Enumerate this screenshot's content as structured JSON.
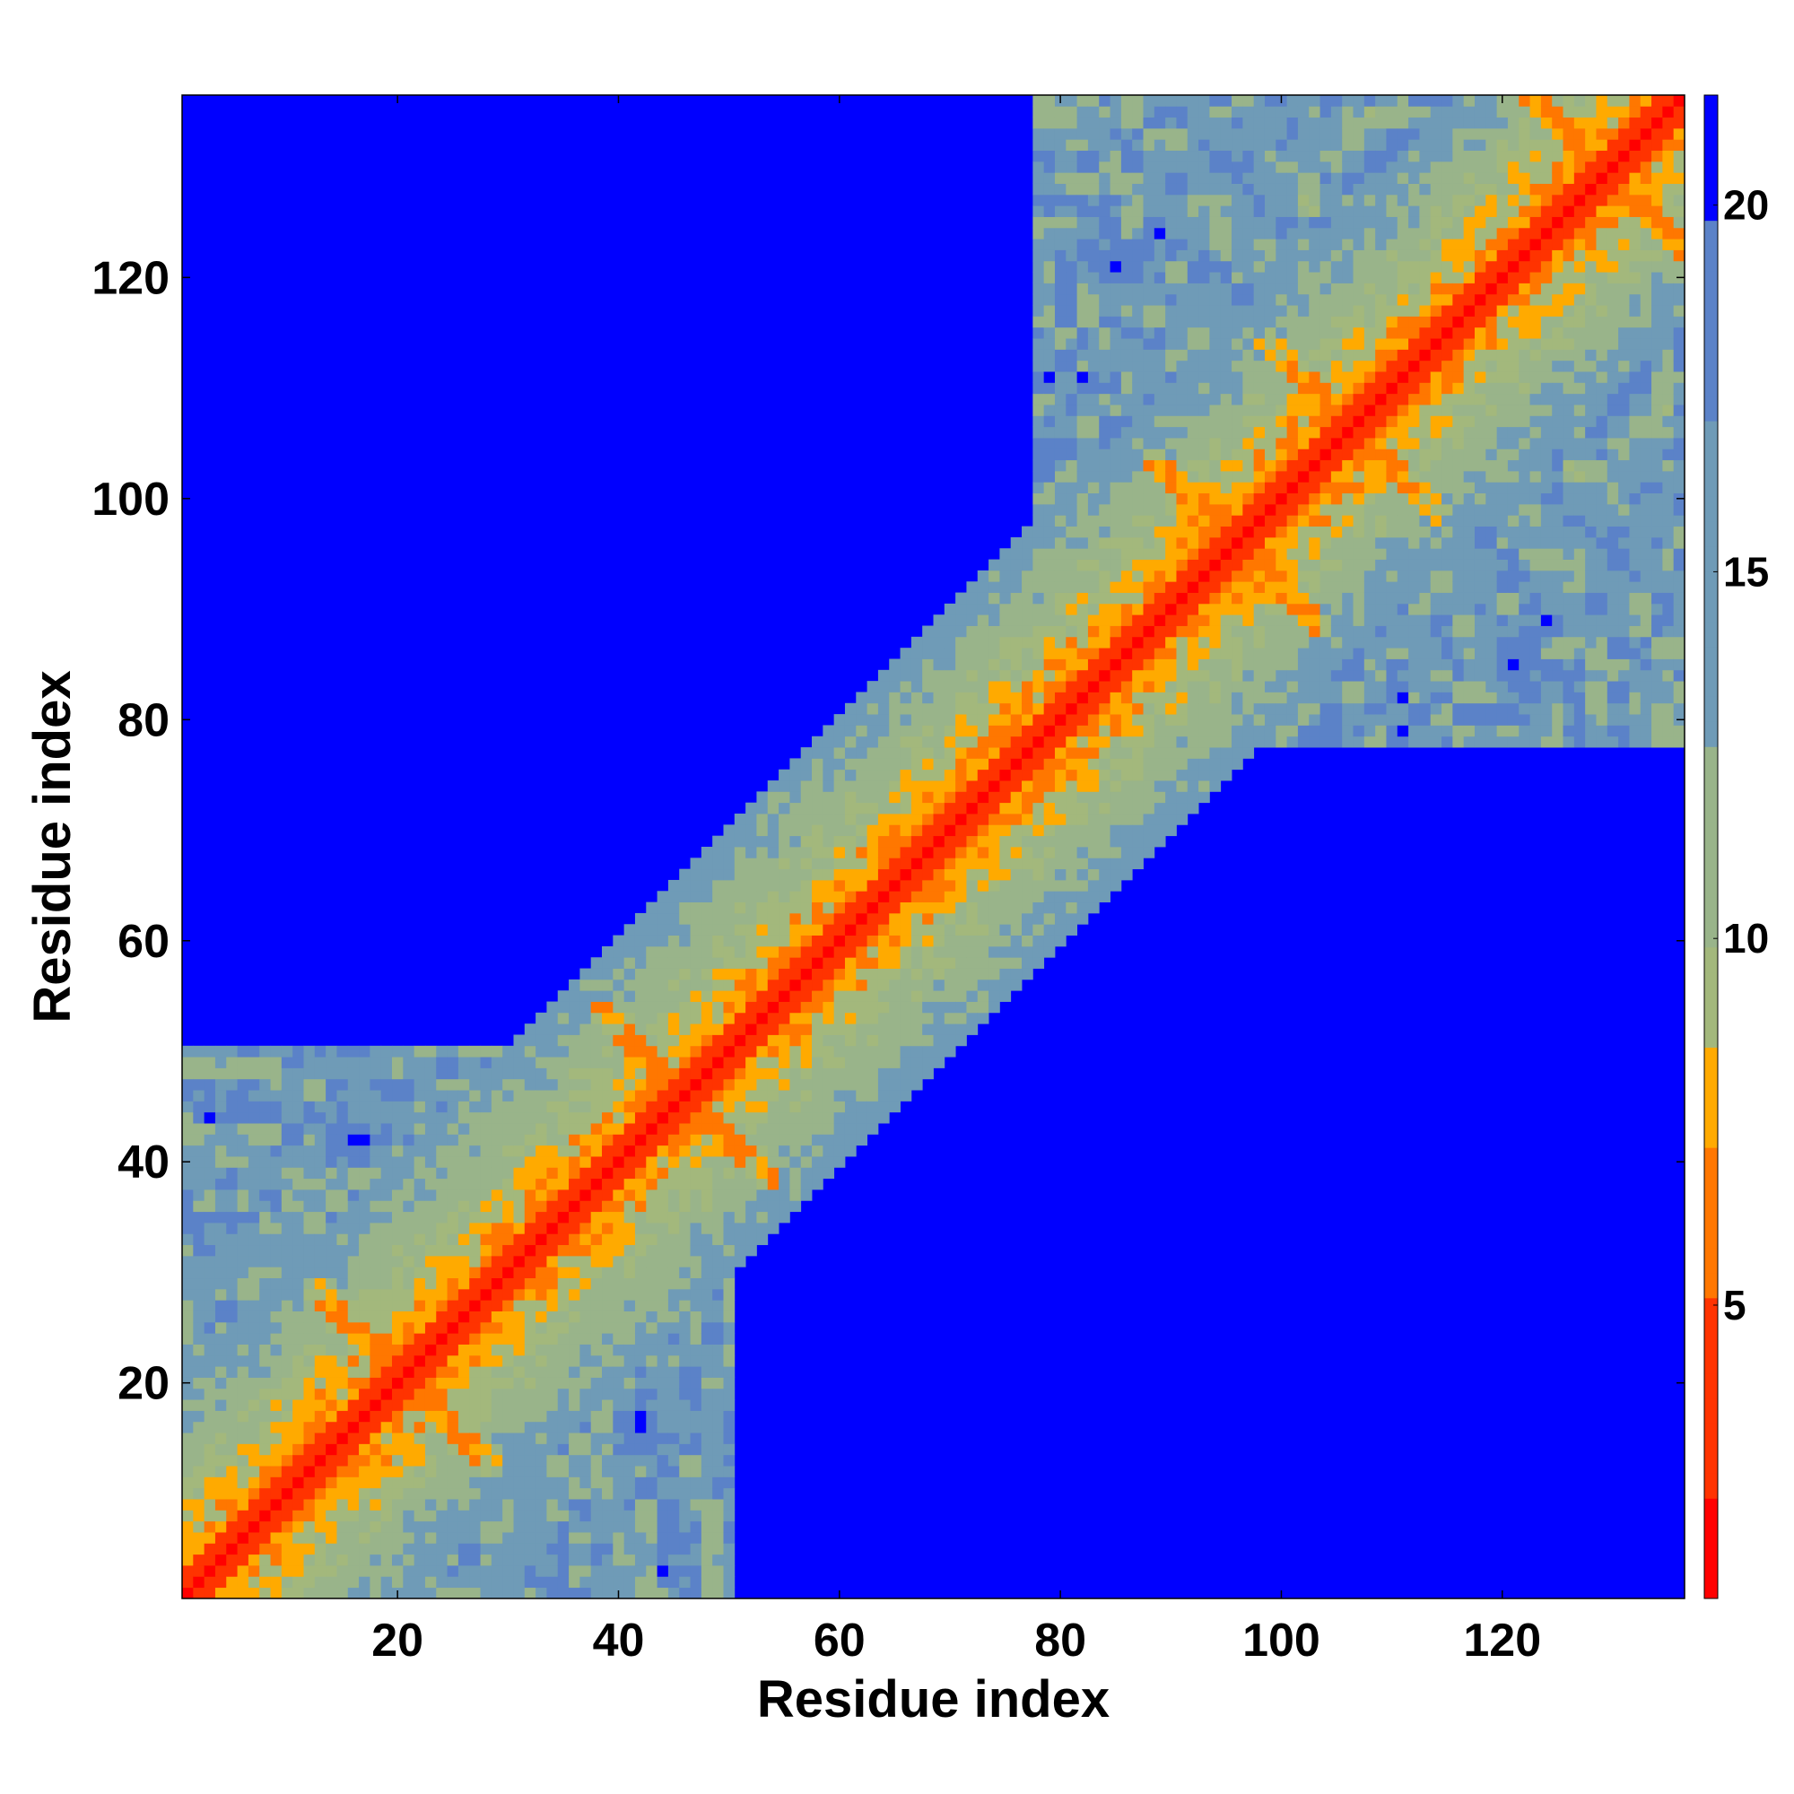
{
  "chart_data": {
    "type": "heatmap",
    "title": "",
    "xlabel": "Residue index",
    "ylabel": "Residue index",
    "xlim": [
      1,
      136
    ],
    "ylim": [
      1,
      136
    ],
    "x_ticks": [
      20,
      40,
      60,
      80,
      100,
      120
    ],
    "y_ticks": [
      20,
      40,
      60,
      80,
      100,
      120
    ],
    "colorbar": {
      "range": [
        1,
        21.5
      ],
      "ticks": [
        5,
        10,
        15,
        20
      ],
      "scale": [
        {
          "value": 1,
          "color": "#ff0000"
        },
        {
          "value": 4,
          "color": "#ff3300"
        },
        {
          "value": 6,
          "color": "#ff7700"
        },
        {
          "value": 8.2,
          "color": "#ffaa00"
        },
        {
          "value": 8.6,
          "color": "#a3b87c"
        },
        {
          "value": 11,
          "color": "#99b48a"
        },
        {
          "value": 14.5,
          "color": "#6f9bb7"
        },
        {
          "value": 19.5,
          "color": "#5b82c8"
        },
        {
          "value": 20.3,
          "color": "#0000ff"
        },
        {
          "value": 21.5,
          "color": "#0000ff"
        }
      ]
    },
    "blocks": [
      {
        "range": [
          1,
          50
        ],
        "max_distance": 20
      },
      {
        "range": [
          78,
          136
        ],
        "max_distance": 20
      }
    ],
    "diagonal_band_width": 20,
    "contact_features": [
      {
        "residues": [
          92,
          100
        ],
        "kind": "anti-diagonal"
      },
      {
        "residues": [
          103,
          110
        ],
        "kind": "anti-diagonal"
      },
      {
        "residues": [
          45,
          47
        ],
        "kind": "anti-diagonal"
      },
      {
        "residues": [
          19,
          22
        ],
        "kind": "anti-diagonal"
      },
      {
        "residues": [
          128,
          131
        ],
        "kind": "anti-diagonal"
      }
    ],
    "grid": false,
    "legend": "colorbar-right"
  }
}
